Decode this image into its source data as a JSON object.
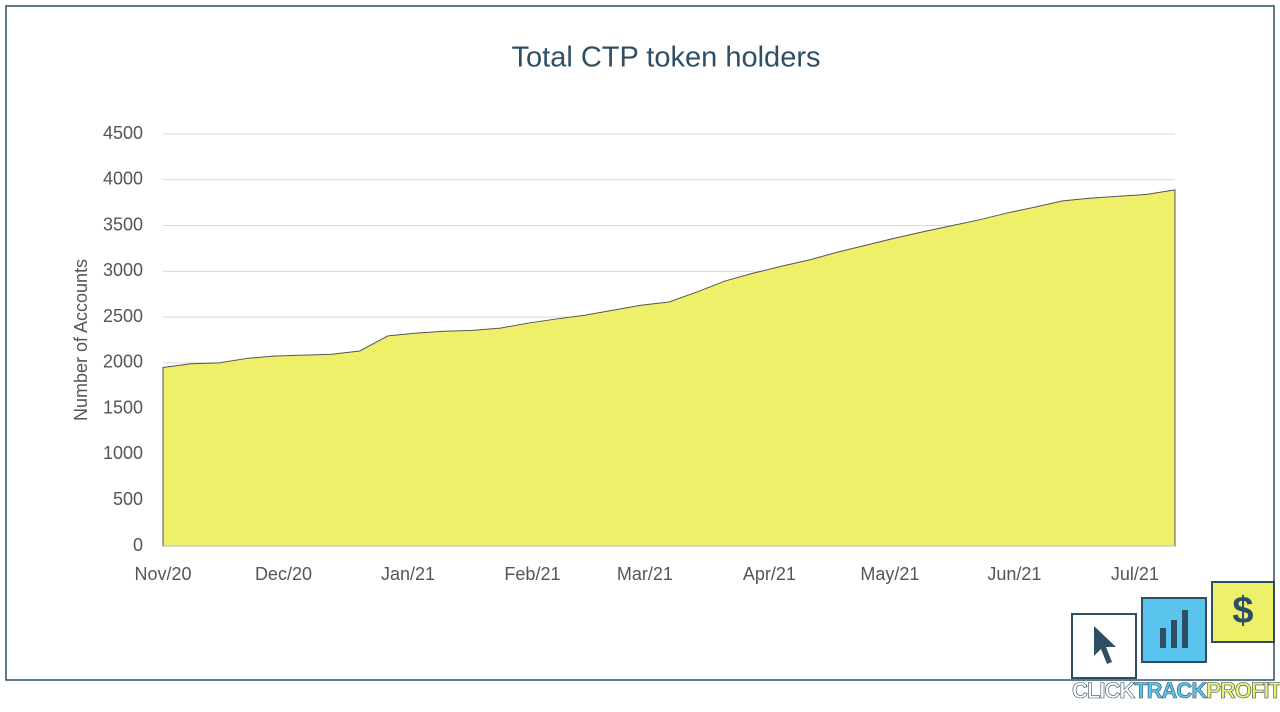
{
  "chart_data": {
    "type": "area",
    "title": "Total CTP token holders",
    "y_label": "Number of Accounts",
    "x": [
      0,
      7,
      14,
      21,
      28,
      35,
      42,
      49,
      56,
      63,
      70,
      77,
      84,
      91,
      98,
      105,
      112,
      119,
      126,
      133,
      140,
      147,
      154,
      161,
      168,
      175,
      182,
      189,
      196,
      203,
      210,
      217,
      224,
      231,
      238,
      245,
      252
    ],
    "series": [
      {
        "name": "Total CTP token holders",
        "color": "#eef06a",
        "values": [
          1950,
          1990,
          2000,
          2050,
          2075,
          2085,
          2095,
          2130,
          2295,
          2325,
          2345,
          2355,
          2380,
          2435,
          2480,
          2520,
          2575,
          2630,
          2665,
          2775,
          2895,
          2980,
          3055,
          3125,
          3210,
          3285,
          3360,
          3430,
          3495,
          3560,
          3635,
          3700,
          3770,
          3800,
          3820,
          3840,
          3890
        ]
      }
    ],
    "xlim": [
      0,
      252
    ],
    "xticks": [
      {
        "value": 0,
        "label": "Nov/20"
      },
      {
        "value": 30,
        "label": "Dec/20"
      },
      {
        "value": 61,
        "label": "Jan/21"
      },
      {
        "value": 92,
        "label": "Feb/21"
      },
      {
        "value": 120,
        "label": "Mar/21"
      },
      {
        "value": 151,
        "label": "Apr/21"
      },
      {
        "value": 181,
        "label": "May/21"
      },
      {
        "value": 212,
        "label": "Jun/21"
      },
      {
        "value": 242,
        "label": "Jul/21"
      }
    ],
    "ylim": [
      0,
      4500
    ],
    "yticks": [
      0,
      500,
      1000,
      1500,
      2000,
      2500,
      3000,
      3500,
      4000,
      4500
    ],
    "grid": true
  },
  "logo": {
    "icon": "$",
    "parts": [
      "CLICK",
      "TRACK",
      "PROFIT"
    ]
  }
}
